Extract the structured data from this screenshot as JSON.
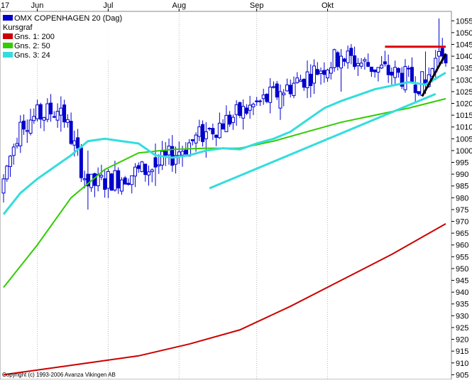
{
  "chart_data": {
    "type": "candlestick",
    "title": "OMX COPENHAGEN 20 (Dag)",
    "subtitle": "Kursgraf",
    "copyright": "Copyright (c) 1993-2006 Avanza Vikingen AB",
    "x_ticks": [
      "17",
      "Jun",
      "Jul",
      "Aug",
      "Sep",
      "Okt"
    ],
    "y_ticks": [
      905,
      910,
      915,
      920,
      925,
      930,
      935,
      940,
      945,
      950,
      955,
      960,
      965,
      970,
      975,
      980,
      985,
      990,
      995,
      1000,
      1005,
      1010,
      1015,
      1020,
      1025,
      1030,
      1035,
      1040,
      1045,
      1050,
      1055
    ],
    "ylim": [
      903,
      1059
    ],
    "trading_days": 132,
    "month_start_index": {
      "Jun": 10,
      "Jul": 31,
      "Aug": 52,
      "Sep": 75,
      "Okt": 96
    },
    "ohlc_sample": [
      {
        "day": 0,
        "open": 982,
        "high": 990,
        "low": 978,
        "close": 988
      },
      {
        "day": 5,
        "open": 1002,
        "high": 1015,
        "low": 999,
        "close": 1012
      },
      {
        "day": 17,
        "open": 1015,
        "high": 1023,
        "low": 1008,
        "close": 1018
      },
      {
        "day": 25,
        "open": 990,
        "high": 1000,
        "low": 975,
        "close": 985
      },
      {
        "day": 45,
        "open": 997,
        "high": 1003,
        "low": 985,
        "close": 993
      },
      {
        "day": 60,
        "open": 1005,
        "high": 1012,
        "low": 997,
        "close": 1008
      },
      {
        "day": 82,
        "open": 1018,
        "high": 1028,
        "low": 1013,
        "close": 1025
      },
      {
        "day": 100,
        "open": 1035,
        "high": 1043,
        "low": 1025,
        "close": 1040
      },
      {
        "day": 125,
        "open": 1030,
        "high": 1042,
        "low": 1024,
        "close": 1028
      },
      {
        "day": 129,
        "open": 1040,
        "high": 1056,
        "low": 1035,
        "close": 1042
      }
    ],
    "series": [
      {
        "name": "OMX COPENHAGEN 20 (Dag)",
        "color": "#0000cc"
      },
      {
        "name": "Gns. 1: 200",
        "color": "#cc0000",
        "points": [
          [
            0,
            905
          ],
          [
            20,
            909
          ],
          [
            40,
            913
          ],
          [
            55,
            918
          ],
          [
            70,
            924
          ],
          [
            85,
            934
          ],
          [
            100,
            945
          ],
          [
            115,
            956
          ],
          [
            131,
            969
          ]
        ]
      },
      {
        "name": "Gns. 2: 50",
        "color": "#33cc00",
        "points": [
          [
            0,
            942
          ],
          [
            10,
            960
          ],
          [
            20,
            980
          ],
          [
            30,
            992
          ],
          [
            40,
            999
          ],
          [
            50,
            1000.5
          ],
          [
            60,
            1001
          ],
          [
            70,
            1001
          ],
          [
            80,
            1004
          ],
          [
            90,
            1008
          ],
          [
            100,
            1012
          ],
          [
            110,
            1015
          ],
          [
            120,
            1018
          ],
          [
            131,
            1022
          ]
        ]
      },
      {
        "name": "Gns. 3: 24",
        "color": "#33dddd",
        "points": [
          [
            0,
            973
          ],
          [
            5,
            982
          ],
          [
            10,
            988
          ],
          [
            15,
            993
          ],
          [
            20,
            998
          ],
          [
            25,
            1004
          ],
          [
            30,
            1005
          ],
          [
            35,
            1004
          ],
          [
            40,
            1003
          ],
          [
            45,
            998
          ],
          [
            50,
            997
          ],
          [
            55,
            998
          ],
          [
            60,
            1000
          ],
          [
            65,
            1001
          ],
          [
            70,
            1000.5
          ],
          [
            75,
            1003
          ],
          [
            80,
            1005
          ],
          [
            85,
            1008
          ],
          [
            90,
            1013
          ],
          [
            95,
            1018
          ],
          [
            100,
            1021
          ],
          [
            110,
            1026
          ],
          [
            120,
            1029
          ],
          [
            125,
            1028
          ],
          [
            131,
            1033
          ]
        ]
      }
    ],
    "annotations": [
      {
        "type": "trendline",
        "color": "#33dddd",
        "from": [
          61,
          984
        ],
        "to": [
          128,
          1024
        ]
      },
      {
        "type": "resistance",
        "color": "#dd0000",
        "from": [
          113,
          1044
        ],
        "to": [
          131,
          1044
        ]
      },
      {
        "type": "trendline",
        "color": "#000000",
        "from": [
          124,
          1023
        ],
        "to": [
          131,
          1041
        ]
      }
    ]
  }
}
